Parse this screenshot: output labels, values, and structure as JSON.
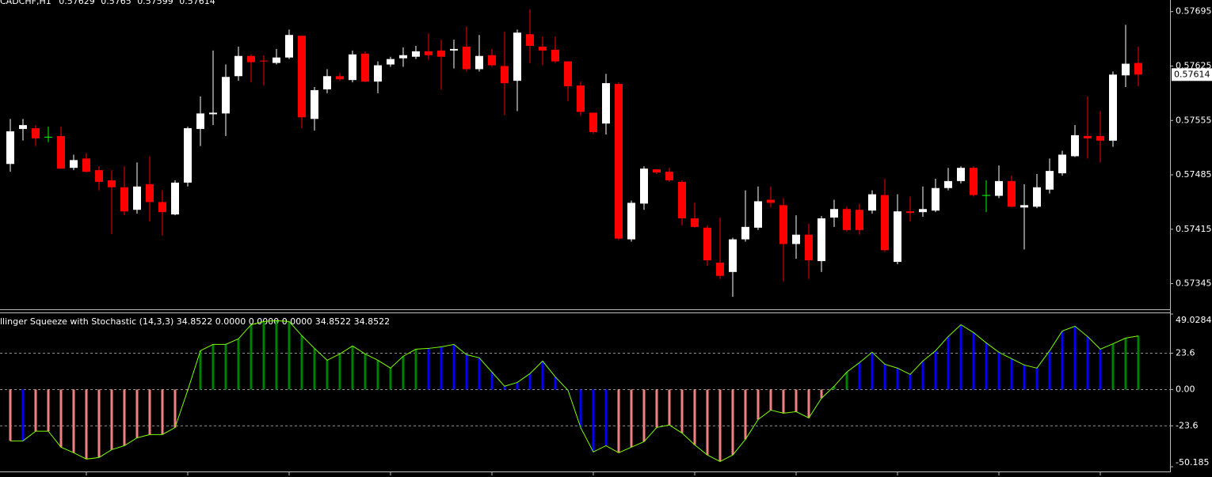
{
  "chart_data": [
    {
      "type": "candlestick",
      "title": "CADCHF,H1",
      "up_color": "#ffffff",
      "down_color": "#ff0000",
      "doji_color": "#00ff00",
      "ylim": [
        0.57313,
        0.5771
      ],
      "yticks": [
        0.57695,
        0.57625,
        0.57555,
        0.57485,
        0.57415,
        0.57345
      ],
      "open": [
        0.57499,
        0.57544,
        0.57545,
        0.57534,
        0.57535,
        0.57494,
        0.57506,
        0.57491,
        0.57478,
        0.57469,
        0.5744,
        0.57473,
        0.5745,
        0.57434,
        0.57475,
        0.57544,
        0.57563,
        0.57564,
        0.57612,
        0.57638,
        0.57632,
        0.57629,
        0.57636,
        0.57664,
        0.57557,
        0.57595,
        0.57612,
        0.57607,
        0.57641,
        0.57605,
        0.57627,
        0.57635,
        0.57637,
        0.57644,
        0.57645,
        0.57645,
        0.5765,
        0.57621,
        0.57639,
        0.57625,
        0.57606,
        0.57666,
        0.5765,
        0.57646,
        0.57631,
        0.576,
        0.57565,
        0.57551,
        0.57602,
        0.57402,
        0.57448,
        0.57492,
        0.57489,
        0.57476,
        0.57429,
        0.57417,
        0.57372,
        0.5736,
        0.57402,
        0.57417,
        0.57453,
        0.57446,
        0.57396,
        0.57408,
        0.57374,
        0.5743,
        0.57441,
        0.5744,
        0.57439,
        0.57459,
        0.57373,
        0.57438,
        0.57437,
        0.57439,
        0.57468,
        0.57477,
        0.57494,
        0.57459,
        0.57458,
        0.57477,
        0.57443,
        0.57444,
        0.57466,
        0.57487,
        0.57509,
        0.57535,
        0.57535,
        0.57529,
        0.57613,
        0.57629
      ],
      "high": [
        0.57557,
        0.57557,
        0.57549,
        0.57547,
        0.57547,
        0.57511,
        0.57513,
        0.57496,
        0.57491,
        0.57496,
        0.57501,
        0.57509,
        0.57465,
        0.57478,
        0.57547,
        0.57586,
        0.57645,
        0.57627,
        0.5765,
        0.5764,
        0.57639,
        0.57647,
        0.57672,
        0.57664,
        0.57598,
        0.57621,
        0.57616,
        0.57645,
        0.57644,
        0.57631,
        0.57637,
        0.57649,
        0.57651,
        0.57667,
        0.57659,
        0.57659,
        0.57676,
        0.57665,
        0.57647,
        0.57669,
        0.57672,
        0.57698,
        0.57663,
        0.57663,
        0.57631,
        0.57605,
        0.57565,
        0.57615,
        0.57604,
        0.57452,
        0.57496,
        0.57492,
        0.57494,
        0.57478,
        0.57449,
        0.5742,
        0.5743,
        0.57404,
        0.57465,
        0.5747,
        0.5747,
        0.57455,
        0.57433,
        0.57422,
        0.57432,
        0.57453,
        0.57444,
        0.57448,
        0.57465,
        0.5748,
        0.5746,
        0.57457,
        0.5747,
        0.5748,
        0.57494,
        0.57496,
        0.57496,
        0.57478,
        0.57497,
        0.57484,
        0.57473,
        0.57486,
        0.57506,
        0.57516,
        0.57549,
        0.57586,
        0.57567,
        0.57618,
        0.57678,
        0.5765
      ],
      "low": [
        0.57489,
        0.57529,
        0.57522,
        0.57527,
        0.57493,
        0.57491,
        0.57488,
        0.57465,
        0.57409,
        0.57433,
        0.57435,
        0.57425,
        0.57407,
        0.57433,
        0.5747,
        0.57522,
        0.57549,
        0.57535,
        0.57606,
        0.57604,
        0.576,
        0.57627,
        0.57634,
        0.57545,
        0.57542,
        0.5759,
        0.57606,
        0.57604,
        0.57604,
        0.5759,
        0.57624,
        0.57624,
        0.57634,
        0.57633,
        0.57595,
        0.57622,
        0.57618,
        0.57618,
        0.57624,
        0.57562,
        0.57567,
        0.57629,
        0.57626,
        0.57629,
        0.5758,
        0.57561,
        0.57538,
        0.57537,
        0.57401,
        0.57399,
        0.5744,
        0.57486,
        0.57476,
        0.5742,
        0.57417,
        0.57368,
        0.57351,
        0.57328,
        0.57399,
        0.57414,
        0.57443,
        0.57348,
        0.57377,
        0.57351,
        0.5736,
        0.57418,
        0.57412,
        0.57408,
        0.57435,
        0.57386,
        0.5737,
        0.57425,
        0.57431,
        0.57437,
        0.57465,
        0.57474,
        0.57457,
        0.57437,
        0.57455,
        0.57443,
        0.57389,
        0.57442,
        0.57461,
        0.57484,
        0.57508,
        0.57506,
        0.57501,
        0.57521,
        0.57598,
        0.57599
      ],
      "close": [
        0.57541,
        0.57549,
        0.57532,
        0.57534,
        0.57493,
        0.57504,
        0.57489,
        0.57476,
        0.57469,
        0.57438,
        0.5747,
        0.5745,
        0.57437,
        0.57475,
        0.57545,
        0.57564,
        0.57565,
        0.57611,
        0.57638,
        0.5763,
        0.57631,
        0.57636,
        0.57665,
        0.57559,
        0.57594,
        0.57612,
        0.57608,
        0.5764,
        0.57605,
        0.57626,
        0.57634,
        0.57639,
        0.57644,
        0.57639,
        0.57637,
        0.57647,
        0.57621,
        0.57638,
        0.57626,
        0.57603,
        0.57668,
        0.57651,
        0.57645,
        0.57631,
        0.57599,
        0.57566,
        0.5754,
        0.57603,
        0.57403,
        0.57449,
        0.57493,
        0.57488,
        0.57478,
        0.57429,
        0.57418,
        0.57375,
        0.57355,
        0.57402,
        0.57418,
        0.57451,
        0.57449,
        0.57396,
        0.57408,
        0.57375,
        0.57429,
        0.57441,
        0.57414,
        0.57414,
        0.5746,
        0.57388,
        0.57438,
        0.57436,
        0.57441,
        0.57468,
        0.57477,
        0.57494,
        0.57459,
        0.57459,
        0.57477,
        0.57444,
        0.57446,
        0.57469,
        0.5749,
        0.57511,
        0.57536,
        0.57532,
        0.57529,
        0.57614,
        0.57628,
        0.57614
      ]
    },
    {
      "type": "histogram",
      "title": "llinger Squeeze with Stochastic (14,3,3) 34.8522 0.0000 0.0000 0.0000 34.8522 34.8522",
      "line_color": "#7cfc00",
      "ylim": [
        -50.185,
        49.0284
      ],
      "yticks": [
        49.0284,
        23.6,
        {
          "value": 0,
          "label": "0.00"
        },
        -23.6,
        -50.185
      ],
      "values": [
        -33.4,
        -33.4,
        -27.1,
        -27.1,
        -37.5,
        -41.1,
        -45.2,
        -44.2,
        -39.1,
        -36.5,
        -31.4,
        -29.3,
        -29.3,
        -24.7,
        -0.5,
        25.2,
        29.3,
        29.3,
        32.9,
        42.1,
        44.2,
        44.7,
        44.2,
        35.0,
        26.7,
        19.0,
        23.1,
        28.3,
        23.1,
        19.0,
        13.9,
        21.6,
        26.2,
        26.7,
        27.7,
        29.3,
        22.6,
        20.6,
        11.3,
        2.1,
        4.6,
        10.3,
        18.5,
        8.2,
        -0.5,
        -24.7,
        -40.6,
        -36.5,
        -41.1,
        -37.5,
        -33.9,
        -24.7,
        -23.1,
        -28.3,
        -36.0,
        -42.6,
        -46.8,
        -42.6,
        -32.4,
        -19.5,
        -13.4,
        -15.4,
        -14.4,
        -18.5,
        -5.7,
        2.1,
        11.3,
        17.5,
        24.2,
        16.4,
        13.9,
        9.8,
        18.5,
        25.2,
        34.4,
        42.1,
        37.0,
        30.3,
        24.2,
        20.0,
        15.9,
        13.9,
        25.2,
        38.0,
        41.1,
        34.4,
        26.2,
        29.7,
        33.4,
        34.8522
      ],
      "bar_colors": [
        "#f08080",
        "#0000ff",
        "#f08080",
        "#f08080",
        "#f08080",
        "#f08080",
        "#f08080",
        "#f08080",
        "#f08080",
        "#f08080",
        "#f08080",
        "#f08080",
        "#f08080",
        "#f08080",
        "#f08080",
        "#008000",
        "#008000",
        "#008000",
        "#008000",
        "#008000",
        "#008000",
        "#008000",
        "#008000",
        "#008000",
        "#008000",
        "#008000",
        "#008000",
        "#008000",
        "#008000",
        "#008000",
        "#008000",
        "#008000",
        "#008000",
        "#0000ff",
        "#0000ff",
        "#0000ff",
        "#0000ff",
        "#0000ff",
        "#0000ff",
        "#0000ff",
        "#0000ff",
        "#0000ff",
        "#0000ff",
        "#0000ff",
        "#0000ff",
        "#0000ff",
        "#0000ff",
        "#0000ff",
        "#f08080",
        "#f08080",
        "#f08080",
        "#f08080",
        "#f08080",
        "#f08080",
        "#f08080",
        "#f08080",
        "#f08080",
        "#f08080",
        "#f08080",
        "#f08080",
        "#f08080",
        "#f08080",
        "#f08080",
        "#f08080",
        "#f08080",
        "#008000",
        "#008000",
        "#0000ff",
        "#0000ff",
        "#0000ff",
        "#0000ff",
        "#0000ff",
        "#0000ff",
        "#0000ff",
        "#0000ff",
        "#0000ff",
        "#0000ff",
        "#0000ff",
        "#0000ff",
        "#0000ff",
        "#0000ff",
        "#0000ff",
        "#0000ff",
        "#0000ff",
        "#0000ff",
        "#0000ff",
        "#0000ff",
        "#008000",
        "#008000",
        "#008000"
      ]
    }
  ]
}
